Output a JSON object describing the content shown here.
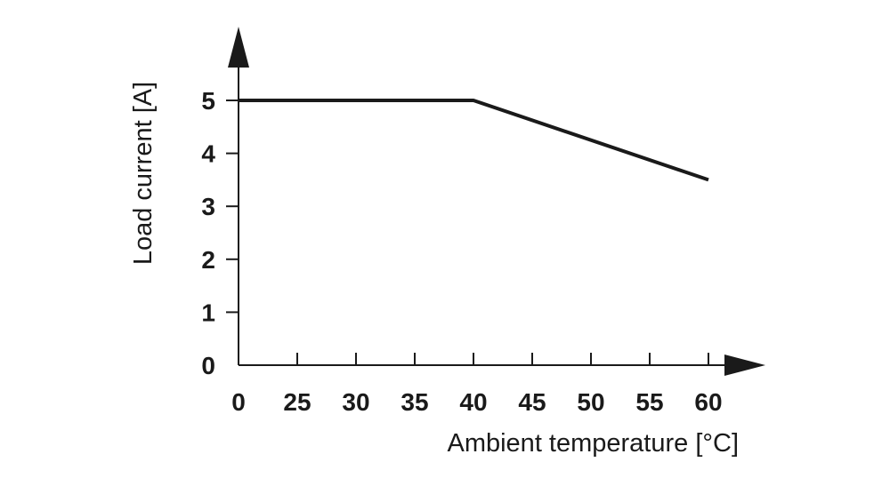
{
  "chart_data": {
    "type": "line",
    "xlabel": "Ambient temperature [°C]",
    "ylabel": "Load current [A]",
    "x_ticks": [
      "0",
      "25",
      "30",
      "35",
      "40",
      "45",
      "50",
      "55",
      "60"
    ],
    "y_ticks": [
      "0",
      "1",
      "2",
      "3",
      "4",
      "5"
    ],
    "ylim": [
      0,
      5
    ],
    "grid": false,
    "legend": "none",
    "series": [
      {
        "x": [
          0,
          40,
          60
        ],
        "y": [
          5,
          5,
          3.5
        ]
      }
    ],
    "colors": {
      "line": "#1a1a1a"
    }
  }
}
